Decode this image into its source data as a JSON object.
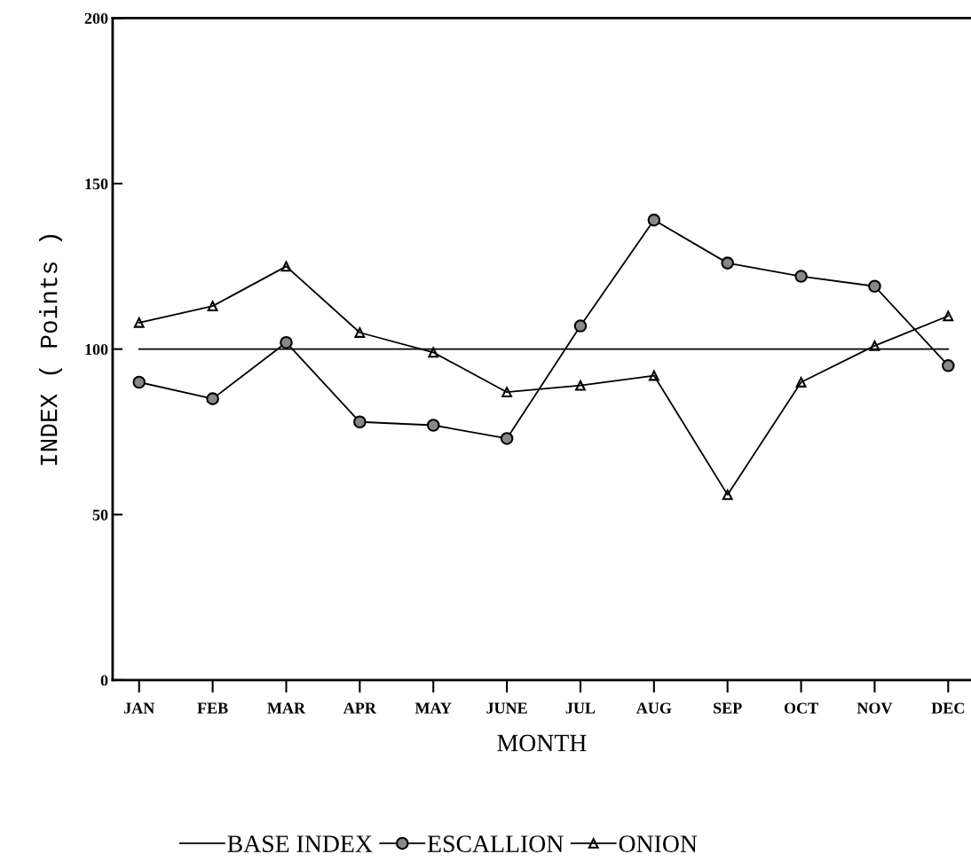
{
  "chart_data": {
    "type": "line",
    "xlabel": "MONTH",
    "ylabel": "INDEX ( Points )",
    "categories": [
      "JAN",
      "FEB",
      "MAR",
      "APR",
      "MAY",
      "JUNE",
      "JUL",
      "AUG",
      "SEP",
      "OCT",
      "NOV",
      "DEC"
    ],
    "series": [
      {
        "name": "BASE INDEX",
        "color": "#000000",
        "marker": "none",
        "values": [
          100,
          100,
          100,
          100,
          100,
          100,
          100,
          100,
          100,
          100,
          100,
          100
        ]
      },
      {
        "name": "ESCALLION",
        "color": "#000000",
        "marker": "circle",
        "values": [
          90,
          85,
          102,
          78,
          77,
          73,
          107,
          139,
          126,
          122,
          119,
          95
        ]
      },
      {
        "name": "ONION",
        "color": "#000000",
        "marker": "triangle",
        "values": [
          108,
          113,
          125,
          105,
          99,
          87,
          89,
          92,
          56,
          90,
          101,
          110
        ]
      }
    ],
    "ylim": [
      0,
      200
    ],
    "yticks": [
      0,
      50,
      100,
      150,
      200
    ],
    "grid": false,
    "legend": "bottom",
    "line_style": "solid"
  }
}
